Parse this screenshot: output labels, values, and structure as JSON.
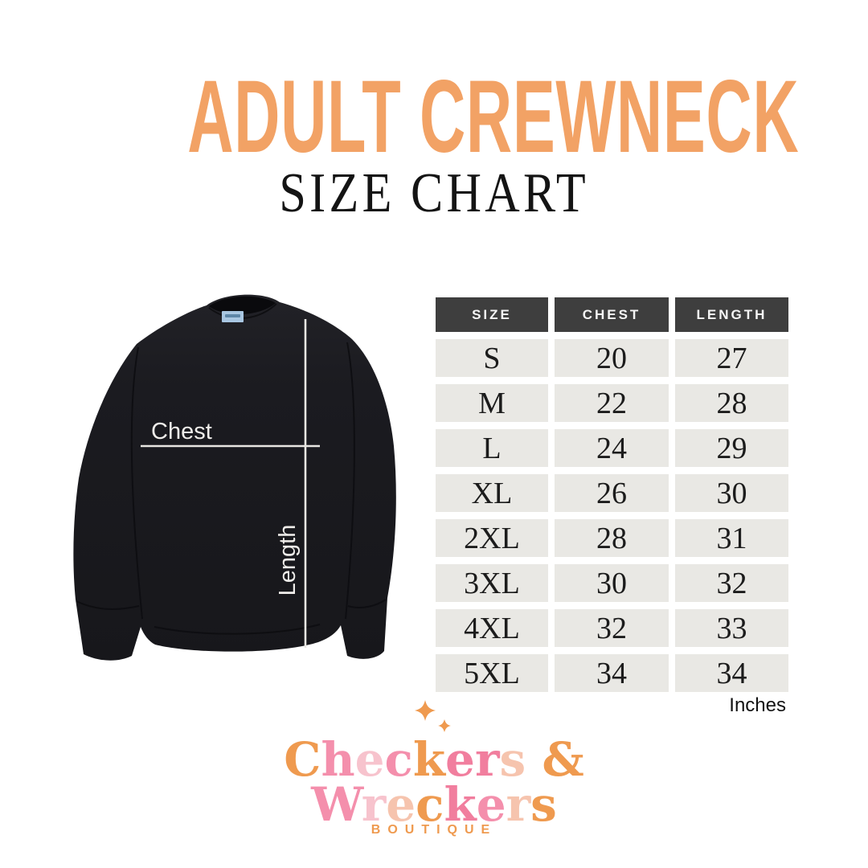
{
  "header": {
    "title": "ADULT CREWNECK",
    "subtitle": "SIZE CHART"
  },
  "colors": {
    "title-orange": "#F2A265",
    "header-bg": "#3E3E3E",
    "row-bg": "#E9E8E4",
    "logo-orange": "#EF9A4F",
    "pink": "#F48FAC",
    "deep-pink": "#F17E9E",
    "pale-pink": "#F7C3CD",
    "peach": "#F6C4AE",
    "sweatshirt-black": "#1A1A1F",
    "measure-line": "#E8E6E2",
    "tag-blue": "#A9C7E2"
  },
  "diagram": {
    "chest_label": "Chest",
    "length_label": "Length",
    "garment_description": "black crewneck sweatshirt with measurement guide lines"
  },
  "chart_data": {
    "type": "table",
    "title": "ADULT CREWNECK SIZE CHART",
    "columns": [
      "SIZE",
      "CHEST",
      "LENGTH"
    ],
    "rows": [
      [
        "S",
        "20",
        "27"
      ],
      [
        "M",
        "22",
        "28"
      ],
      [
        "L",
        "24",
        "29"
      ],
      [
        "XL",
        "26",
        "30"
      ],
      [
        "2XL",
        "28",
        "31"
      ],
      [
        "3XL",
        "30",
        "32"
      ],
      [
        "4XL",
        "32",
        "33"
      ],
      [
        "5XL",
        "34",
        "34"
      ]
    ],
    "unit": "Inches",
    "layout": "header row dark gray, data rows light gray, white gutters"
  },
  "footer_logo": {
    "line1": [
      [
        "C",
        "logo-orange"
      ],
      [
        "h",
        "pink"
      ],
      [
        "e",
        "pale-pink"
      ],
      [
        "c",
        "pink"
      ],
      [
        "k",
        "logo-orange"
      ],
      [
        "e",
        "deep-pink"
      ],
      [
        "r",
        "deep-pink"
      ],
      [
        "s",
        "peach"
      ],
      [
        " ",
        "pink"
      ],
      [
        "&",
        "logo-orange"
      ]
    ],
    "line2": [
      [
        "W",
        "pink"
      ],
      [
        "r",
        "pale-pink"
      ],
      [
        "e",
        "peach"
      ],
      [
        "c",
        "logo-orange"
      ],
      [
        "k",
        "deep-pink"
      ],
      [
        "e",
        "pink"
      ],
      [
        "r",
        "peach"
      ],
      [
        "s",
        "logo-orange"
      ]
    ],
    "subtext": "BOUTIQUE"
  }
}
